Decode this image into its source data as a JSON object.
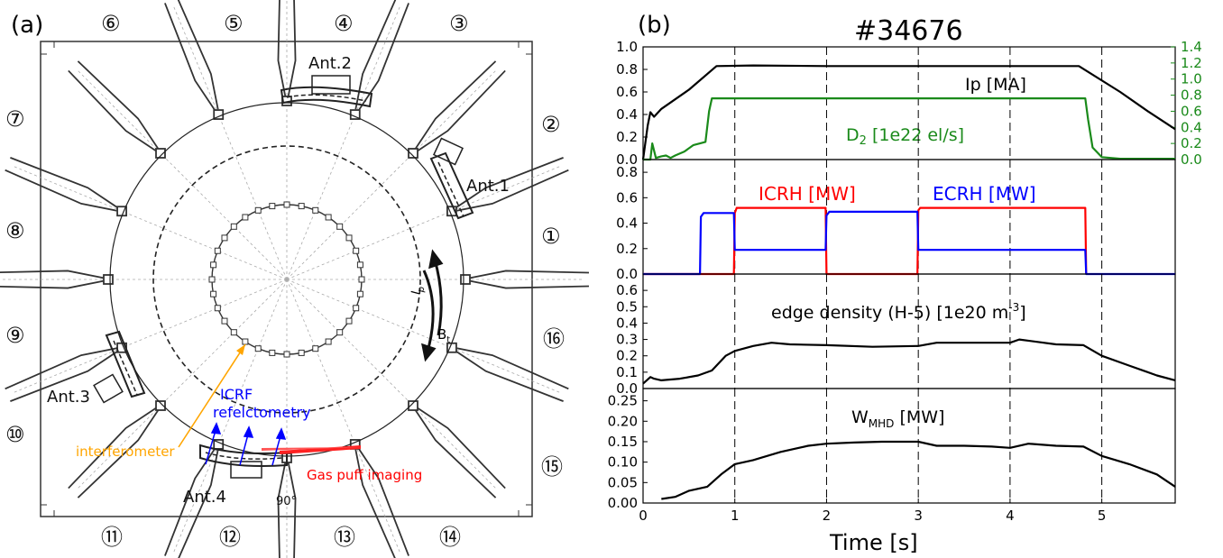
{
  "left_panel": {
    "panel_label": "(a)",
    "ports": [
      "①",
      "②",
      "③",
      "④",
      "⑤",
      "⑥",
      "⑦",
      "⑧",
      "⑨",
      "⑩",
      "⑪",
      "⑫",
      "⑬",
      "⑭",
      "⑮",
      "⑯"
    ],
    "antennas": [
      "Ant.1",
      "Ant.2",
      "Ant.3",
      "Ant.4"
    ],
    "field_labels": {
      "ip": "I",
      "ip_sub": "p",
      "bt": "B",
      "bt_sub": "t"
    },
    "angle_label": "90°",
    "diagnostics": {
      "icrf": "ICRF",
      "refl": "refelctometry",
      "interferometer": "interferometer",
      "gpi": "Gas puff imaging"
    },
    "colors": {
      "icrf": "#0000ff",
      "interferometer": "#ffa500",
      "gpi": "#ff0000",
      "wall": "#333333"
    }
  },
  "chart_data": [
    {
      "type": "line",
      "panel_label": "(b)",
      "title": "#34676",
      "xlabel": "Time [s]",
      "xlim": [
        0,
        5.8
      ],
      "xticks": [
        "0",
        "1",
        "2",
        "3",
        "4",
        "5"
      ],
      "vlines": [
        1,
        2,
        3,
        4,
        5
      ],
      "ylim": [
        0,
        1.0
      ],
      "yticks": [
        "0.0",
        "0.2",
        "0.4",
        "0.6",
        "0.8",
        "1.0"
      ],
      "right_axis": {
        "ylim": [
          0,
          1.4
        ],
        "yticks": [
          "0.0",
          "0.2",
          "0.4",
          "0.6",
          "0.8",
          "1.0",
          "1.2",
          "1.4"
        ],
        "color": "#1a8a1a"
      },
      "series": [
        {
          "name": "Ip [MA]",
          "color": "#000000",
          "axis": "left",
          "x": [
            0,
            0.05,
            0.08,
            0.12,
            0.2,
            0.5,
            0.8,
            1.2,
            2,
            3,
            4,
            4.75,
            5.2,
            5.5,
            5.8
          ],
          "y": [
            0,
            0.3,
            0.42,
            0.38,
            0.45,
            0.62,
            0.83,
            0.835,
            0.83,
            0.83,
            0.83,
            0.83,
            0.6,
            0.43,
            0.27
          ]
        },
        {
          "name": "D_2 [1e22 el/s]",
          "color": "#1a8a1a",
          "axis": "right",
          "x": [
            0,
            0.08,
            0.1,
            0.14,
            0.2,
            0.25,
            0.3,
            0.35,
            0.45,
            0.55,
            0.62,
            0.68,
            0.72,
            0.75,
            1.5,
            3,
            4.5,
            4.82,
            4.85,
            4.9,
            5.0,
            5.2,
            5.8
          ],
          "y": [
            0,
            0,
            0.2,
            0.02,
            0.04,
            0.05,
            0.02,
            0.05,
            0.1,
            0.18,
            0.2,
            0.22,
            0.6,
            0.76,
            0.76,
            0.76,
            0.76,
            0.76,
            0.5,
            0.15,
            0.03,
            0.01,
            0.01
          ]
        }
      ]
    },
    {
      "type": "line",
      "xlim": [
        0,
        5.8
      ],
      "vlines": [
        1,
        2,
        3,
        4,
        5
      ],
      "ylim": [
        0,
        0.9
      ],
      "yticks": [
        "0.0",
        "0.2",
        "0.4",
        "0.6",
        "0.8"
      ],
      "series": [
        {
          "name": "ICRH [MW]",
          "color": "#ff0000",
          "x": [
            0,
            0.99,
            1.0,
            1.02,
            1.99,
            2.0,
            2.99,
            3.0,
            3.02,
            4.82,
            4.83
          ],
          "y": [
            0,
            0,
            0.48,
            0.52,
            0.52,
            0,
            0,
            0.5,
            0.52,
            0.52,
            0
          ]
        },
        {
          "name": "ECRH [MW]",
          "color": "#0000ff",
          "x": [
            0,
            0.62,
            0.63,
            0.66,
            0.99,
            1.0,
            1.99,
            2.0,
            2.03,
            2.99,
            3.0,
            4.82,
            4.83,
            5.8
          ],
          "y": [
            0,
            0,
            0.45,
            0.48,
            0.48,
            0.19,
            0.19,
            0.46,
            0.49,
            0.49,
            0.19,
            0.19,
            0,
            0
          ]
        }
      ]
    },
    {
      "type": "line",
      "xlim": [
        0,
        5.8
      ],
      "vlines": [
        1,
        2,
        3,
        4,
        5
      ],
      "ylim": [
        0,
        0.7
      ],
      "yticks": [
        "0.0",
        "0.1",
        "0.2",
        "0.3",
        "0.4",
        "0.5",
        "0.6"
      ],
      "annotation": "edge density (H-5) [1e20 m",
      "annotation_sup": "-3",
      "annotation_end": "]",
      "series": [
        {
          "name": "edge density (H-5)",
          "color": "#000000",
          "x": [
            0,
            0.08,
            0.12,
            0.2,
            0.4,
            0.6,
            0.75,
            0.9,
            1.0,
            1.2,
            1.4,
            1.6,
            2.0,
            2.5,
            3.0,
            3.2,
            3.5,
            4.0,
            4.1,
            4.5,
            4.8,
            5.0,
            5.3,
            5.6,
            5.8
          ],
          "y": [
            0.03,
            0.07,
            0.06,
            0.05,
            0.06,
            0.08,
            0.11,
            0.2,
            0.23,
            0.26,
            0.28,
            0.27,
            0.265,
            0.255,
            0.26,
            0.28,
            0.28,
            0.28,
            0.3,
            0.27,
            0.265,
            0.2,
            0.14,
            0.08,
            0.05
          ]
        }
      ]
    },
    {
      "type": "line",
      "xlim": [
        0,
        5.8
      ],
      "vlines": [
        1,
        2,
        3,
        4,
        5
      ],
      "ylim": [
        0,
        0.28
      ],
      "yticks": [
        "0.00",
        "0.05",
        "0.10",
        "0.15",
        "0.20",
        "0.25"
      ],
      "annotation": "W",
      "annotation_sub": "MHD",
      "annotation_end": " [MW]",
      "series": [
        {
          "name": "W_MHD [MW]",
          "color": "#000000",
          "x": [
            0.2,
            0.35,
            0.5,
            0.7,
            0.85,
            1.0,
            1.2,
            1.5,
            1.8,
            2.0,
            2.3,
            2.6,
            3.0,
            3.2,
            3.5,
            3.8,
            4.0,
            4.2,
            4.5,
            4.8,
            5.0,
            5.3,
            5.6,
            5.8
          ],
          "y": [
            0.01,
            0.015,
            0.03,
            0.04,
            0.07,
            0.095,
            0.105,
            0.125,
            0.14,
            0.145,
            0.148,
            0.15,
            0.15,
            0.14,
            0.14,
            0.138,
            0.135,
            0.145,
            0.14,
            0.138,
            0.115,
            0.095,
            0.07,
            0.04
          ]
        }
      ]
    }
  ]
}
